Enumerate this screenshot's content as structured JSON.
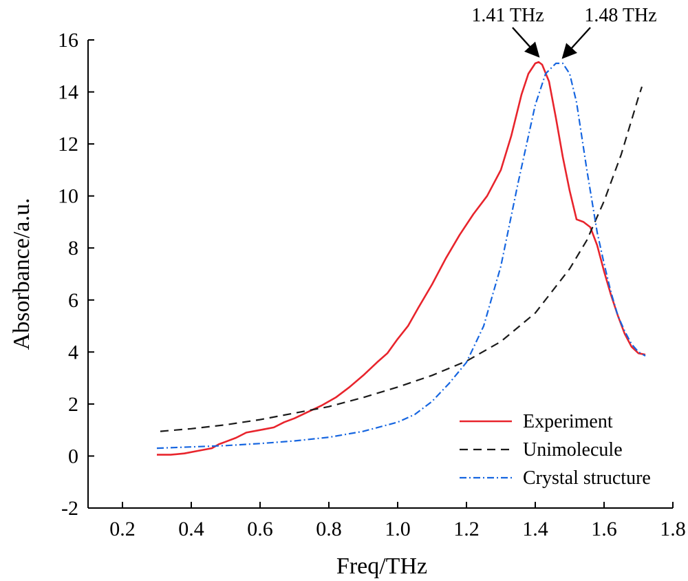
{
  "chart_data": {
    "type": "line",
    "title": "",
    "xlabel": "Freq/THz",
    "ylabel": "Absorbance/a.u.",
    "xlim": [
      0.1,
      1.8
    ],
    "ylim": [
      -2,
      16
    ],
    "xticks": [
      "0.2",
      "0.4",
      "0.6",
      "0.8",
      "1.0",
      "1.2",
      "1.4",
      "1.6",
      "1.8"
    ],
    "yticks": [
      "-2",
      "0",
      "2",
      "4",
      "6",
      "8",
      "10",
      "12",
      "14",
      "16"
    ],
    "grid": false,
    "legend_position": "bottom-right",
    "annotations": [
      {
        "text": "1.41 THz",
        "x": 1.41,
        "y": 15.15
      },
      {
        "text": "1.48 THz",
        "x": 1.48,
        "y": 15.1
      }
    ],
    "series": [
      {
        "name": "Experiment",
        "color": "#e8242c",
        "style": "solid",
        "x": [
          0.3,
          0.34,
          0.38,
          0.42,
          0.46,
          0.48,
          0.5,
          0.53,
          0.56,
          0.6,
          0.64,
          0.67,
          0.7,
          0.74,
          0.78,
          0.82,
          0.86,
          0.9,
          0.94,
          0.97,
          1.0,
          1.03,
          1.06,
          1.1,
          1.14,
          1.18,
          1.22,
          1.26,
          1.3,
          1.33,
          1.36,
          1.38,
          1.4,
          1.41,
          1.42,
          1.44,
          1.46,
          1.48,
          1.5,
          1.52,
          1.54,
          1.56,
          1.58,
          1.6,
          1.62,
          1.64,
          1.66,
          1.68,
          1.7,
          1.72
        ],
        "values": [
          0.05,
          0.05,
          0.1,
          0.2,
          0.3,
          0.45,
          0.55,
          0.7,
          0.9,
          1.0,
          1.1,
          1.3,
          1.45,
          1.7,
          1.95,
          2.25,
          2.65,
          3.1,
          3.6,
          3.95,
          4.5,
          5.0,
          5.7,
          6.6,
          7.6,
          8.5,
          9.3,
          10.0,
          11.0,
          12.3,
          13.9,
          14.7,
          15.1,
          15.15,
          15.05,
          14.4,
          13.0,
          11.5,
          10.2,
          9.1,
          9.0,
          8.8,
          8.1,
          7.1,
          6.2,
          5.4,
          4.7,
          4.2,
          3.95,
          3.9
        ]
      },
      {
        "name": "Unimolecule",
        "color": "#1a1a1a",
        "style": "dashed",
        "x": [
          0.31,
          0.4,
          0.5,
          0.6,
          0.7,
          0.8,
          0.9,
          1.0,
          1.1,
          1.2,
          1.3,
          1.4,
          1.5,
          1.55,
          1.6,
          1.65,
          1.7,
          1.71
        ],
        "values": [
          0.95,
          1.05,
          1.2,
          1.4,
          1.65,
          1.9,
          2.25,
          2.65,
          3.1,
          3.65,
          4.4,
          5.5,
          7.2,
          8.3,
          9.8,
          11.6,
          13.8,
          14.2
        ]
      },
      {
        "name": "Crystal structure",
        "color": "#1565e0",
        "style": "dashdot",
        "x": [
          0.3,
          0.4,
          0.5,
          0.6,
          0.7,
          0.8,
          0.9,
          1.0,
          1.05,
          1.1,
          1.15,
          1.2,
          1.25,
          1.3,
          1.35,
          1.4,
          1.43,
          1.46,
          1.48,
          1.5,
          1.52,
          1.55,
          1.58,
          1.6,
          1.62,
          1.64,
          1.66,
          1.68,
          1.7,
          1.72
        ],
        "values": [
          0.3,
          0.35,
          0.4,
          0.48,
          0.58,
          0.72,
          0.95,
          1.3,
          1.6,
          2.1,
          2.8,
          3.6,
          5.0,
          7.3,
          10.5,
          13.5,
          14.7,
          15.1,
          15.1,
          14.7,
          13.6,
          11.0,
          8.6,
          7.4,
          6.3,
          5.4,
          4.8,
          4.3,
          4.0,
          3.85
        ]
      }
    ]
  }
}
